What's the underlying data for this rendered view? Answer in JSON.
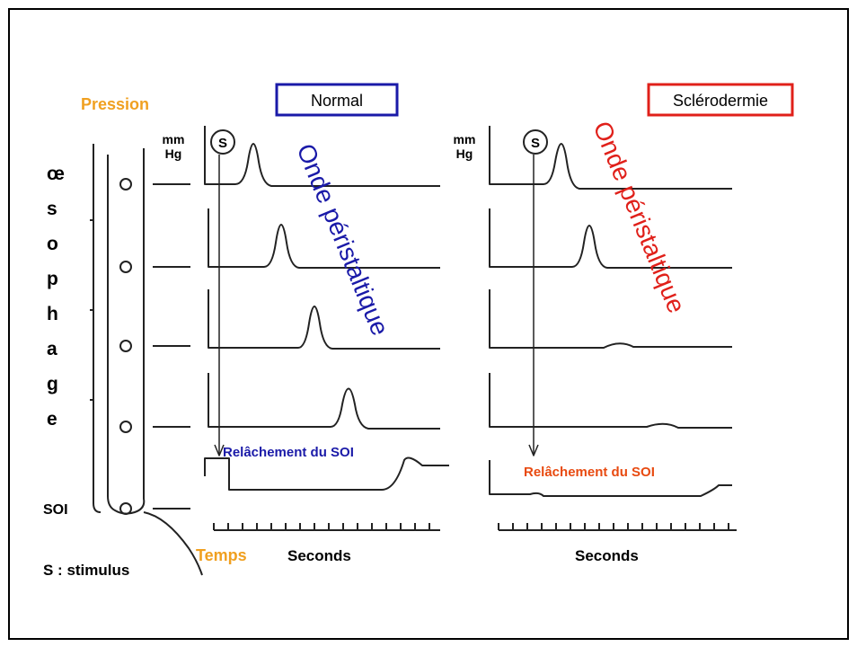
{
  "labels": {
    "pressure": "Pression",
    "time": "Temps",
    "stimulus_legend": "S : stimulus",
    "sphincter": "SOI",
    "organ": [
      "œ",
      "s",
      "o",
      "p",
      "h",
      "a",
      "g",
      "e"
    ]
  },
  "panels": [
    {
      "title": "Normal",
      "unit": [
        "mm",
        "Hg"
      ],
      "stimulus": "S",
      "wave": "Onde péristaltique",
      "relaxation": "Relâchement du SOI",
      "axis": "Seconds"
    },
    {
      "title": "Sclérodermie",
      "unit": [
        "mm",
        "Hg"
      ],
      "stimulus": "S",
      "wave": "Onde péristaltique",
      "relaxation": "Relâchement du SOI",
      "axis": "Seconds"
    }
  ]
}
